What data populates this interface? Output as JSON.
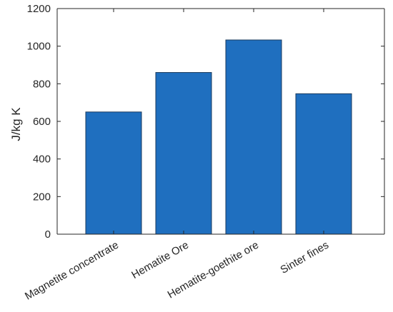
{
  "chart_data": {
    "type": "bar",
    "categories": [
      "Magnetite concentrate",
      "Hematite Ore",
      "Hematite-goethite ore",
      "Sinter fines"
    ],
    "values": [
      650,
      860,
      1033,
      747
    ],
    "title": "",
    "xlabel": "",
    "ylabel": "J/kg K",
    "ylim": [
      0,
      1200
    ],
    "yticks": [
      0,
      200,
      400,
      600,
      800,
      1000,
      1200
    ],
    "grid": false,
    "bar_color": "#1f6fbf",
    "bar_edge_color": "#1a3a5c",
    "axis_color": "#262626"
  }
}
